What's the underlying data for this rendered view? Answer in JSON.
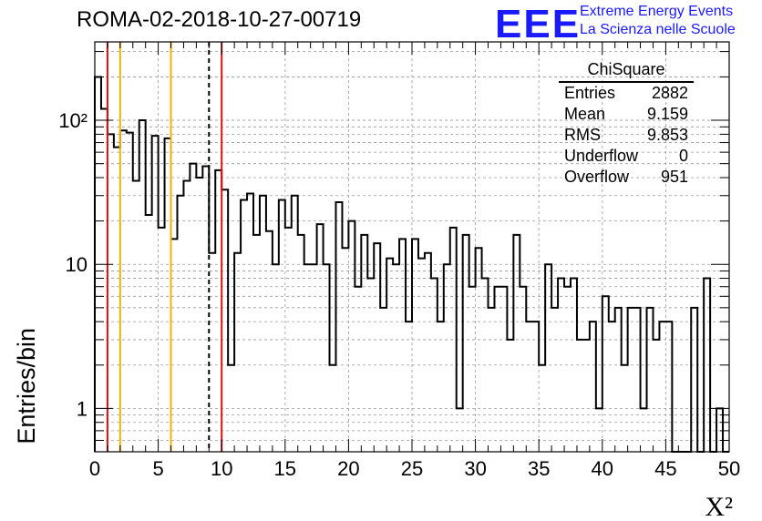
{
  "header": {
    "run_title": "ROMA-02-2018-10-27-00719",
    "logo_text": "EEE",
    "logo_line1": "Extreme Energy Events",
    "logo_line2": "La Scienza nelle Scuole"
  },
  "stats_box": {
    "title": "ChiSquare",
    "rows": [
      {
        "label": "Entries",
        "value": "2882"
      },
      {
        "label": "Mean",
        "value": "9.159"
      },
      {
        "label": "RMS",
        "value": "9.853"
      },
      {
        "label": "Underflow",
        "value": "0"
      },
      {
        "label": "Overflow",
        "value": "951"
      }
    ]
  },
  "colors": {
    "red_line": "#dd1111",
    "orange_line": "#f2b400",
    "dashed_line": "#000000",
    "histogram": "#000000",
    "logo": "#1a1aff"
  },
  "chart_data": {
    "type": "histogram",
    "scale_y": "log",
    "xlabel": "X²",
    "ylabel": "Entries/bin",
    "xlim": [
      0,
      50
    ],
    "ylim": [
      0.5,
      350
    ],
    "x_ticks": [
      "0",
      "5",
      "10",
      "15",
      "20",
      "25",
      "30",
      "35",
      "40",
      "45",
      "50"
    ],
    "y_ticks": [
      {
        "value": 1,
        "label": "1"
      },
      {
        "value": 10,
        "label": "10"
      },
      {
        "value": 100,
        "label": "10²"
      }
    ],
    "grid": true,
    "bin_width": 0.5,
    "counts": [
      200,
      120,
      80,
      65,
      85,
      82,
      38,
      100,
      22,
      78,
      18,
      75,
      15,
      30,
      38,
      50,
      40,
      48,
      12,
      45,
      33,
      2,
      12,
      28,
      31,
      16,
      30,
      17,
      10,
      28,
      18,
      30,
      16,
      10,
      10,
      19,
      10,
      2,
      27,
      13,
      20,
      7,
      16,
      8,
      14,
      5,
      11,
      10,
      15,
      4,
      15,
      11,
      12,
      8,
      4,
      10,
      18,
      1,
      16,
      7,
      13,
      8,
      5,
      7,
      7,
      3,
      16,
      7,
      4,
      4,
      2,
      10,
      5,
      8,
      7,
      8,
      3,
      3,
      4,
      1,
      6,
      4,
      5,
      2,
      5,
      5,
      1,
      5,
      3,
      4,
      4,
      0,
      0,
      0,
      5,
      0,
      8,
      0,
      1,
      0
    ],
    "vertical_lines": [
      {
        "x": 1.0,
        "color": "red",
        "style": "solid"
      },
      {
        "x": 2.0,
        "color": "orange",
        "style": "solid"
      },
      {
        "x": 6.0,
        "color": "orange",
        "style": "solid"
      },
      {
        "x": 9.0,
        "color": "black",
        "style": "dashed"
      },
      {
        "x": 10.0,
        "color": "red",
        "style": "solid"
      }
    ]
  }
}
